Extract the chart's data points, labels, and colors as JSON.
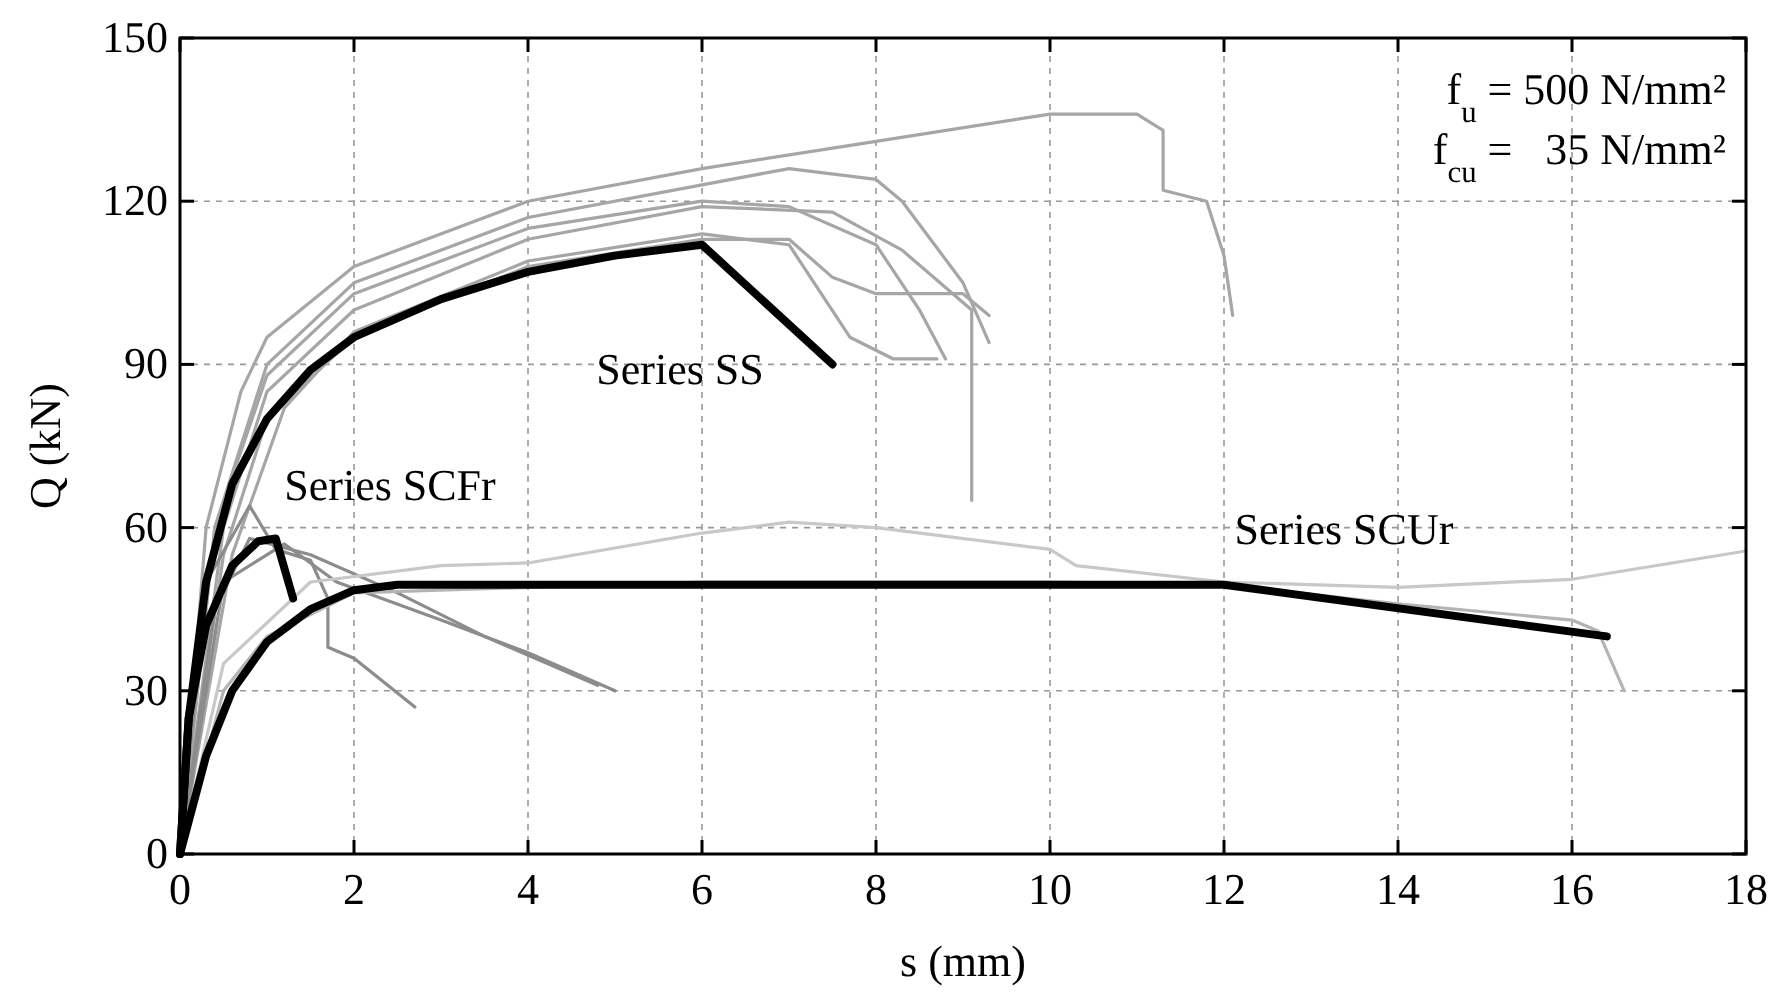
{
  "chart_data": {
    "type": "line",
    "xlabel": "s (mm)",
    "ylabel": "Q (kN)",
    "xlim": [
      0,
      18
    ],
    "ylim": [
      0,
      150
    ],
    "xticks": [
      0,
      2,
      4,
      6,
      8,
      10,
      12,
      14,
      16,
      18
    ],
    "yticks": [
      0,
      30,
      60,
      90,
      120,
      150
    ],
    "grid": true,
    "line_style": "solid",
    "annotations": [
      "Series SS",
      "Series SCFr",
      "Series SCUr",
      "f$_{u}$ = 500 N/mm²",
      "f$_{cu}$ =   35 N/mm²"
    ],
    "series": [
      {
        "color": "#a6a6a6",
        "x": [
          0,
          0.3,
          0.7,
          1,
          2,
          4,
          6,
          8,
          10,
          11,
          11.3,
          11.3,
          11.8,
          12,
          12.1
        ],
        "values": [
          0,
          60,
          85,
          95,
          108,
          120,
          126,
          131,
          136,
          136,
          133,
          122,
          120,
          110,
          99
        ]
      },
      {
        "color": "#a6a6a6",
        "x": [
          0,
          0.4,
          1,
          2,
          4,
          6,
          7,
          8,
          8.3,
          9,
          9.3
        ],
        "values": [
          0,
          60,
          90,
          105,
          117,
          123,
          126,
          124,
          120,
          105,
          94
        ]
      },
      {
        "color": "#a6a6a6",
        "x": [
          0,
          0.5,
          1,
          2,
          4,
          6,
          7.5,
          8.3,
          9.1,
          9.1
        ],
        "values": [
          0,
          60,
          85,
          100,
          113,
          119,
          118,
          111,
          100,
          65
        ]
      },
      {
        "color": "#a6a6a6",
        "x": [
          0,
          0.5,
          1,
          2,
          4,
          6,
          7,
          7.5,
          8,
          9,
          9.3
        ],
        "values": [
          0,
          55,
          80,
          95,
          108,
          113,
          113,
          106,
          103,
          103,
          99
        ]
      },
      {
        "color": "#a6a6a6",
        "x": [
          0,
          0.4,
          1,
          2,
          4,
          6,
          7,
          8,
          8.5,
          8.8
        ],
        "values": [
          0,
          60,
          88,
          103,
          115,
          120,
          119,
          112,
          100,
          91
        ]
      },
      {
        "color": "#a6a6a6",
        "x": [
          0,
          0.6,
          1.2,
          2,
          4,
          6,
          7,
          7.7,
          8.2,
          8.7
        ],
        "values": [
          0,
          55,
          82,
          96,
          109,
          114,
          112,
          95,
          91,
          91
        ]
      },
      {
        "color": "#8c8c8c",
        "x": [
          0,
          0.3,
          0.8,
          1.1,
          1.5,
          1.7,
          1.7,
          2,
          2.7
        ],
        "values": [
          0,
          50,
          64,
          56,
          54,
          47,
          38,
          36,
          27
        ]
      },
      {
        "color": "#8c8c8c",
        "x": [
          0,
          0.4,
          0.8,
          1.5,
          2.5,
          3.5,
          4.8
        ],
        "values": [
          0,
          45,
          58,
          55,
          48,
          40,
          31
        ]
      },
      {
        "color": "#8c8c8c",
        "x": [
          0,
          0.5,
          1.2,
          1.8,
          3,
          4,
          5
        ],
        "values": [
          0,
          50,
          57,
          50,
          43,
          37,
          30
        ]
      },
      {
        "color": "#c8c8c8",
        "x": [
          0,
          0.5,
          1.5,
          3,
          4,
          6,
          7,
          8,
          10,
          10.3,
          12,
          14,
          16,
          18
        ],
        "values": [
          0,
          35,
          50,
          53,
          53.5,
          59,
          61,
          60,
          56,
          53,
          50,
          49,
          50.5,
          55.7
        ]
      },
      {
        "color": "#b4b4b4",
        "x": [
          0,
          0.5,
          1,
          2,
          6,
          10,
          12,
          14,
          16,
          16.3,
          16.6
        ],
        "values": [
          0,
          30,
          40,
          48,
          50,
          50,
          49.5,
          46,
          43,
          41,
          30
        ]
      },
      {
        "color": "#000000",
        "x": [
          0,
          0.1,
          0.3,
          0.6,
          1,
          1.5,
          2,
          3,
          4,
          5,
          6,
          7.5
        ],
        "values": [
          0,
          25,
          50,
          68,
          80,
          89,
          95,
          102,
          107,
          110,
          112,
          90
        ]
      },
      {
        "color": "#000000",
        "x": [
          0,
          0.1,
          0.3,
          0.6,
          0.9,
          1.1,
          1.3
        ],
        "values": [
          0,
          25,
          42,
          53,
          57.5,
          58,
          47
        ]
      },
      {
        "color": "#000000",
        "x": [
          0,
          0.3,
          0.6,
          1,
          1.5,
          2,
          2.5,
          12,
          16.4
        ],
        "values": [
          0,
          18,
          30,
          39,
          45,
          48.5,
          49.5,
          49.5,
          40
        ]
      }
    ]
  }
}
